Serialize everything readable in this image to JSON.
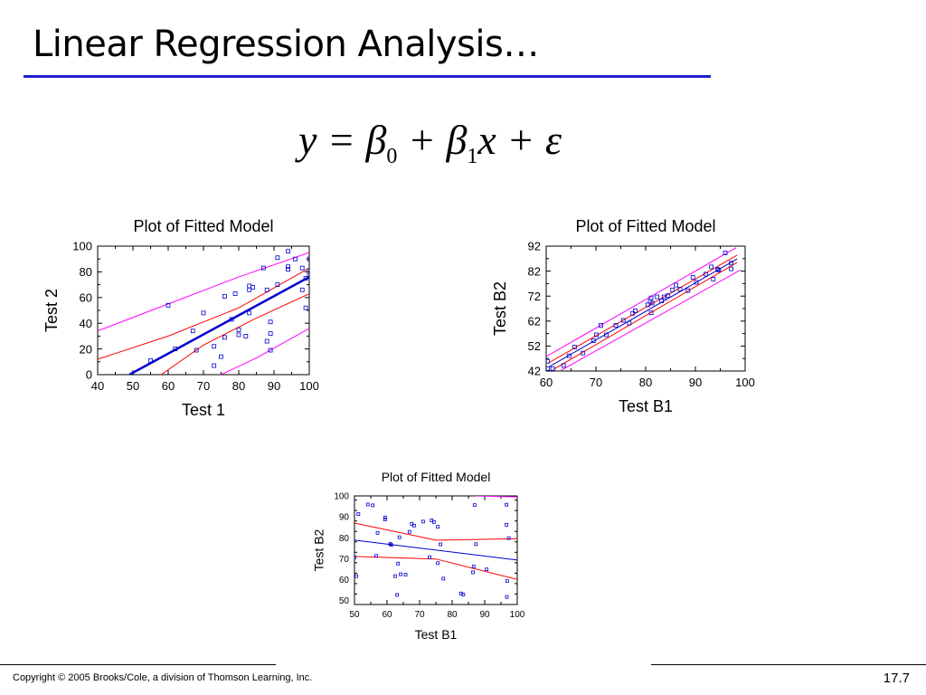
{
  "slide": {
    "title": "Linear Regression Analysis…",
    "equation": {
      "y": "y",
      "equals": "=",
      "beta": "β",
      "sub0": "0",
      "plus": "+",
      "sub1": "1",
      "x": "x",
      "epsilon": "ε"
    },
    "copyright": "Copyright © 2005 Brooks/Cole, a division of Thomson Learning, Inc.",
    "page_number": "17.7"
  },
  "chart_data": [
    {
      "type": "scatter",
      "title": "Plot of Fitted Model",
      "xlabel": "Test 1",
      "ylabel": "Test 2",
      "xlim": [
        40,
        100
      ],
      "ylim": [
        0,
        100
      ],
      "xticks": [
        40,
        50,
        60,
        70,
        80,
        90,
        100
      ],
      "yticks": [
        0,
        20,
        40,
        60,
        80,
        100
      ],
      "points": [
        [
          55,
          11
        ],
        [
          60,
          54
        ],
        [
          62,
          20
        ],
        [
          67,
          34
        ],
        [
          68,
          19
        ],
        [
          70,
          48
        ],
        [
          73,
          22
        ],
        [
          73,
          7
        ],
        [
          75,
          14
        ],
        [
          76,
          29
        ],
        [
          76,
          61
        ],
        [
          78,
          43
        ],
        [
          79,
          63
        ],
        [
          80,
          35
        ],
        [
          80,
          31
        ],
        [
          82,
          30
        ],
        [
          83,
          48
        ],
        [
          83,
          66
        ],
        [
          83,
          69
        ],
        [
          84,
          68
        ],
        [
          87,
          83
        ],
        [
          88,
          26
        ],
        [
          88,
          66
        ],
        [
          89,
          41
        ],
        [
          89,
          32
        ],
        [
          89,
          19
        ],
        [
          91,
          91
        ],
        [
          91,
          70
        ],
        [
          94,
          96
        ],
        [
          94,
          84
        ],
        [
          94,
          82
        ],
        [
          96,
          90
        ],
        [
          98,
          83
        ],
        [
          98,
          66
        ],
        [
          99,
          52
        ],
        [
          99,
          75
        ],
        [
          100,
          81
        ],
        [
          100,
          90
        ],
        [
          100,
          77
        ]
      ],
      "fit": {
        "x": [
          49,
          100
        ],
        "y": [
          0,
          76
        ]
      },
      "confidence_upper": {
        "x": [
          40,
          60,
          80,
          100
        ],
        "y": [
          12,
          30,
          52,
          83
        ]
      },
      "confidence_lower": {
        "x": [
          58,
          70,
          85,
          100
        ],
        "y": [
          0,
          23,
          44,
          63
        ]
      },
      "prediction_upper": {
        "x": [
          40,
          60,
          80,
          100
        ],
        "y": [
          34,
          55,
          76,
          95
        ]
      },
      "prediction_lower": {
        "x": [
          75,
          85,
          100
        ],
        "y": [
          0,
          13,
          36
        ]
      },
      "colors": {
        "fit": "#0000cc",
        "confidence": "#ff0000",
        "prediction": "#ff00ff",
        "points": "#0000cc"
      }
    },
    {
      "type": "scatter",
      "title": "Plot of Fitted Model",
      "xlabel": "Test B1",
      "ylabel": "Test B2",
      "xlim": [
        60,
        100
      ],
      "ylim": [
        42,
        92
      ],
      "xticks": [
        60,
        70,
        80,
        90,
        100
      ],
      "yticks": [
        42,
        52,
        62,
        72,
        82,
        92
      ],
      "points": [
        [
          60.3,
          45.9
        ],
        [
          60.3,
          43
        ],
        [
          61.3,
          43
        ],
        [
          63.5,
          44.2
        ],
        [
          64.6,
          48.1
        ],
        [
          65.7,
          51.6
        ],
        [
          67.4,
          49.2
        ],
        [
          69.5,
          54.1
        ],
        [
          70.1,
          56.5
        ],
        [
          71,
          60.3
        ],
        [
          72.1,
          56.5
        ],
        [
          74,
          60.3
        ],
        [
          75.5,
          62.3
        ],
        [
          76.7,
          61.2
        ],
        [
          77.4,
          65.1
        ],
        [
          77.9,
          66.1
        ],
        [
          80.4,
          68.5
        ],
        [
          80.9,
          69.9
        ],
        [
          81.1,
          71.3
        ],
        [
          81.1,
          65.3
        ],
        [
          81.3,
          69.2
        ],
        [
          82.3,
          71.7
        ],
        [
          83.2,
          70.1
        ],
        [
          83.7,
          71.7
        ],
        [
          84.5,
          72.2
        ],
        [
          85.4,
          74.5
        ],
        [
          86.1,
          76.4
        ],
        [
          86.9,
          74.8
        ],
        [
          88.5,
          74.2
        ],
        [
          89.5,
          79.5
        ],
        [
          90.2,
          77.5
        ],
        [
          92.1,
          80.8
        ],
        [
          93.2,
          83.7
        ],
        [
          93.6,
          78.8
        ],
        [
          94.5,
          82.7
        ],
        [
          94.7,
          82.4
        ],
        [
          96,
          89.3
        ],
        [
          97.2,
          85.2
        ],
        [
          97.2,
          82.9
        ]
      ],
      "fit": {
        "x": [
          60.5,
          98.4
        ],
        "y": [
          43.6,
          86.9
        ]
      },
      "confidence_upper": {
        "x": [
          60.5,
          98.4
        ],
        "y": [
          45.3,
          88.4
        ]
      },
      "confidence_lower": {
        "x": [
          61.5,
          98.4
        ],
        "y": [
          42.7,
          85.5
        ]
      },
      "prediction_upper": {
        "x": [
          60,
          98.2
        ],
        "y": [
          47.8,
          91.4
        ]
      },
      "prediction_lower": {
        "x": [
          63,
          99
        ],
        "y": [
          42.3,
          82.4
        ]
      },
      "colors": {
        "fit": "#0000cc",
        "confidence": "#ff0000",
        "prediction": "#ff00ff",
        "points": "#0000cc"
      }
    },
    {
      "type": "scatter",
      "title": "Plot of Fitted Model",
      "xlabel": "Test B1",
      "ylabel": "Test B2",
      "xlim": [
        50,
        100
      ],
      "ylim": [
        48,
        100
      ],
      "xticks": [
        50,
        60,
        70,
        80,
        90,
        100
      ],
      "yticks": [
        50,
        60,
        70,
        80,
        90,
        100
      ],
      "points": [
        [
          50,
          70.6
        ],
        [
          50.6,
          61.6
        ],
        [
          51.2,
          91.3
        ],
        [
          54.1,
          95.9
        ],
        [
          55.6,
          95.5
        ],
        [
          57.1,
          82.3
        ],
        [
          56.7,
          71.3
        ],
        [
          59.4,
          89.7
        ],
        [
          59.4,
          88.7
        ],
        [
          61,
          77
        ],
        [
          61.3,
          76.5
        ],
        [
          62.5,
          61.6
        ],
        [
          63.1,
          52.6
        ],
        [
          63.8,
          80.2
        ],
        [
          63.4,
          67.6
        ],
        [
          64.2,
          62.5
        ],
        [
          65.7,
          62.3
        ],
        [
          66.9,
          82.8
        ],
        [
          67.6,
          86.6
        ],
        [
          68.3,
          85.8
        ],
        [
          71.1,
          87.7
        ],
        [
          73.7,
          88.3
        ],
        [
          73.1,
          70.6
        ],
        [
          74.4,
          87.5
        ],
        [
          75.6,
          85.2
        ],
        [
          75.6,
          67.8
        ],
        [
          76.4,
          76.8
        ],
        [
          77.3,
          60.4
        ],
        [
          82.7,
          53.3
        ],
        [
          83.4,
          52.8
        ],
        [
          86.4,
          63.4
        ],
        [
          86.6,
          66.2
        ],
        [
          87.3,
          76.9
        ],
        [
          86.9,
          95.6
        ],
        [
          90.6,
          64.8
        ],
        [
          96.7,
          95.8
        ],
        [
          96.7,
          86.2
        ],
        [
          96.9,
          59.2
        ],
        [
          96.8,
          51.6
        ],
        [
          97.4,
          79.8
        ]
      ],
      "fit": {
        "x": [
          50,
          100
        ],
        "y": [
          78.8,
          69.3
        ]
      },
      "confidence_upper": {
        "x": [
          50,
          75,
          100
        ],
        "y": [
          87,
          78.8,
          79.5
        ]
      },
      "confidence_lower": {
        "x": [
          50,
          75,
          100
        ],
        "y": [
          71,
          69.8,
          60
        ]
      },
      "prediction_upper": {
        "x": [
          87,
          100
        ],
        "y": [
          100,
          99.5
        ]
      },
      "colors": {
        "fit": "#0000cc",
        "confidence": "#ff0000",
        "prediction": "#ff00ff",
        "points": "#0000cc"
      }
    }
  ]
}
